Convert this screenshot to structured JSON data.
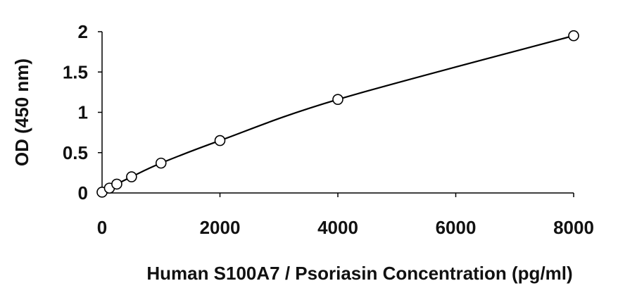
{
  "chart_data": {
    "type": "scatter",
    "title": "",
    "xlabel": "Human S100A7 / Psoriasin Concentration (pg/ml)",
    "ylabel": "OD (450 nm)",
    "xlim": [
      0,
      8000
    ],
    "ylim": [
      0,
      2
    ],
    "xticks": [
      "0",
      "2000",
      "4000",
      "6000",
      "8000"
    ],
    "yticks": [
      "0",
      "0.5",
      "1",
      "1.5",
      "2"
    ],
    "grid": false,
    "legend": "none",
    "series": [
      {
        "x": [
          0,
          125,
          250,
          500,
          1000,
          2000,
          4000,
          8000
        ],
        "y": [
          0.01,
          0.06,
          0.11,
          0.2,
          0.37,
          0.65,
          1.16,
          1.95
        ],
        "marker": "open-circle",
        "fit_line": "smooth"
      }
    ],
    "colors": {
      "line": "#000000",
      "marker_fill": "#ffffff",
      "marker_stroke": "#000000"
    }
  }
}
